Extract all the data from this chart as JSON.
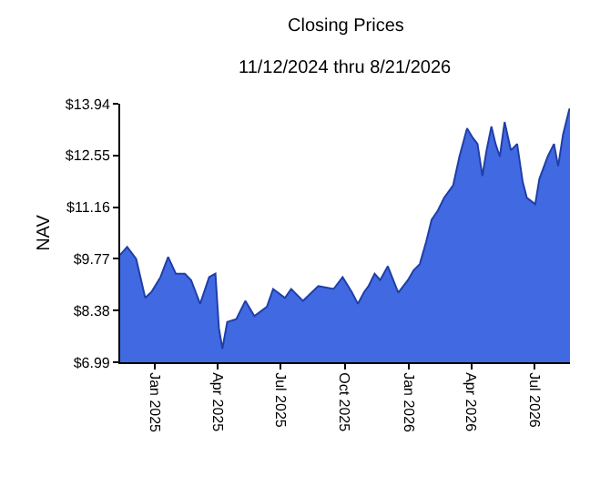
{
  "chart_data": {
    "type": "area",
    "title": "Closing Prices",
    "subtitle": "11/12/2024 thru 8/21/2026",
    "ylabel": "NAV",
    "x": [
      "2024-11-12",
      "2024-11-22",
      "2024-12-05",
      "2024-12-18",
      "2024-12-27",
      "2025-01-09",
      "2025-01-20",
      "2025-01-31",
      "2025-02-13",
      "2025-02-22",
      "2025-03-07",
      "2025-03-20",
      "2025-03-29",
      "2025-04-03",
      "2025-04-08",
      "2025-04-15",
      "2025-04-28",
      "2025-05-11",
      "2025-05-24",
      "2025-06-11",
      "2025-06-20",
      "2025-07-07",
      "2025-07-16",
      "2025-08-02",
      "2025-08-24",
      "2025-09-15",
      "2025-09-28",
      "2025-10-11",
      "2025-10-20",
      "2025-10-29",
      "2025-11-04",
      "2025-11-13",
      "2025-11-21",
      "2025-12-02",
      "2025-12-17",
      "2025-12-31",
      "2026-01-08",
      "2026-01-17",
      "2026-01-26",
      "2026-02-03",
      "2026-02-12",
      "2026-02-21",
      "2026-03-06",
      "2026-03-15",
      "2026-03-26",
      "2026-04-03",
      "2026-04-10",
      "2026-04-17",
      "2026-04-23",
      "2026-04-30",
      "2026-05-06",
      "2026-05-12",
      "2026-05-19",
      "2026-05-28",
      "2026-06-06",
      "2026-06-14",
      "2026-06-20",
      "2026-07-02",
      "2026-07-08",
      "2026-07-20",
      "2026-07-29",
      "2026-08-04",
      "2026-08-11",
      "2026-08-20",
      "2026-08-21"
    ],
    "series": [
      {
        "color": "#4169e1",
        "values": [
          9.88,
          10.09,
          9.77,
          8.72,
          8.88,
          9.28,
          9.82,
          9.37,
          9.37,
          9.2,
          8.56,
          9.28,
          9.37,
          7.91,
          7.35,
          8.07,
          8.15,
          8.64,
          8.23,
          8.48,
          8.96,
          8.72,
          8.96,
          8.64,
          9.04,
          8.96,
          9.28,
          8.88,
          8.56,
          8.88,
          9.03,
          9.37,
          9.2,
          9.57,
          8.86,
          9.2,
          9.46,
          9.63,
          10.22,
          10.82,
          11.07,
          11.41,
          11.75,
          12.52,
          13.28,
          13.03,
          12.86,
          12.0,
          12.69,
          13.33,
          12.86,
          12.52,
          13.45,
          12.69,
          12.86,
          11.84,
          11.41,
          11.24,
          11.92,
          12.52,
          12.86,
          12.26,
          13.11,
          13.79,
          13.8
        ]
      }
    ],
    "xlim": [
      "2024-11-12",
      "2026-08-21"
    ],
    "xticks": [
      {
        "value": "2025-01-01",
        "label": "Jan 2025"
      },
      {
        "value": "2025-04-01",
        "label": "Apr 2025"
      },
      {
        "value": "2025-07-01",
        "label": "Jul 2025"
      },
      {
        "value": "2025-10-01",
        "label": "Oct 2025"
      },
      {
        "value": "2026-01-01",
        "label": "Jan 2026"
      },
      {
        "value": "2026-04-01",
        "label": "Apr 2026"
      },
      {
        "value": "2026-07-01",
        "label": "Jul 2026"
      }
    ],
    "ylim": [
      6.99,
      13.94
    ],
    "yticks": [
      {
        "value": 6.99,
        "label": "$6.99"
      },
      {
        "value": 8.38,
        "label": "$8.38"
      },
      {
        "value": 9.77,
        "label": "$9.77"
      },
      {
        "value": 11.16,
        "label": "$11.16"
      },
      {
        "value": 12.55,
        "label": "$12.55"
      },
      {
        "value": 13.94,
        "label": "$13.94"
      }
    ],
    "marker": "none"
  }
}
